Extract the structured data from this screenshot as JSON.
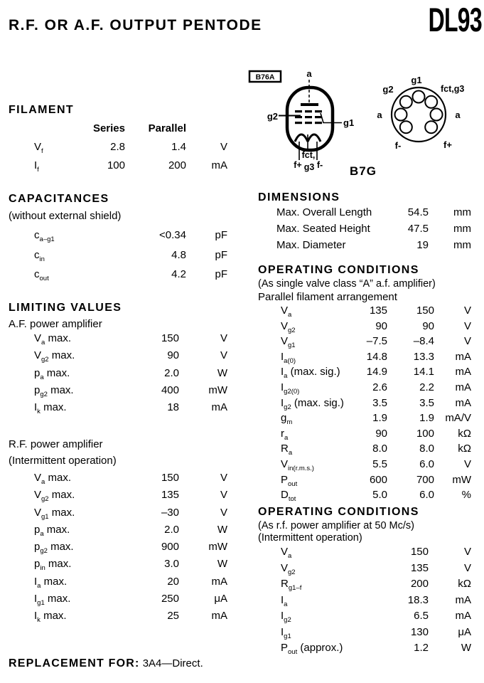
{
  "page": {
    "title": "R.F. OR A.F. OUTPUT PENTODE",
    "model": "DL93"
  },
  "filament": {
    "heading": "FILAMENT",
    "col_headers": [
      "Series",
      "Parallel"
    ],
    "rows": [
      {
        "label": "V_{f}",
        "series": "2.8",
        "parallel": "1.4",
        "unit": "V"
      },
      {
        "label": "I_{f}",
        "series": "100",
        "parallel": "200",
        "unit": "mA"
      }
    ]
  },
  "capacitances": {
    "heading": "CAPACITANCES",
    "subtitle": "(without external shield)",
    "rows": [
      {
        "label": "c_{a–g1}",
        "value": "<0.34",
        "unit": "pF"
      },
      {
        "label": "c_{in}",
        "value": "4.8",
        "unit": "pF"
      },
      {
        "label": "c_{out}",
        "value": "4.2",
        "unit": "pF"
      }
    ]
  },
  "limiting_values": {
    "heading": "LIMITING VALUES",
    "af": {
      "subtitle": "A.F. power amplifier",
      "rows": [
        {
          "label": "V_{a} max.",
          "value": "150",
          "unit": "V"
        },
        {
          "label": "V_{g2} max.",
          "value": "90",
          "unit": "V"
        },
        {
          "label": "p_{a} max.",
          "value": "2.0",
          "unit": "W"
        },
        {
          "label": "p_{g2} max.",
          "value": "400",
          "unit": "mW"
        },
        {
          "label": "I_{k} max.",
          "value": "18",
          "unit": "mA"
        }
      ]
    },
    "rf": {
      "subtitle": "R.F. power amplifier",
      "subtitle2": "(Intermittent operation)",
      "rows": [
        {
          "label": "V_{a} max.",
          "value": "150",
          "unit": "V"
        },
        {
          "label": "V_{g2} max.",
          "value": "135",
          "unit": "V"
        },
        {
          "label": "V_{g1} max.",
          "value": "–30",
          "unit": "V"
        },
        {
          "label": "p_{a} max.",
          "value": "2.0",
          "unit": "W"
        },
        {
          "label": "p_{g2} max.",
          "value": "900",
          "unit": "mW"
        },
        {
          "label": "p_{in} max.",
          "value": "3.0",
          "unit": "W"
        },
        {
          "label": "I_{a} max.",
          "value": "20",
          "unit": "mA"
        },
        {
          "label": "I_{g1} max.",
          "value": "250",
          "unit": "μA"
        },
        {
          "label": "I_{k} max.",
          "value": "25",
          "unit": "mA"
        }
      ]
    }
  },
  "dimensions": {
    "heading": "DIMENSIONS",
    "rows": [
      {
        "label": "Max. Overall Length",
        "value": "54.5",
        "unit": "mm"
      },
      {
        "label": "Max. Seated Height",
        "value": "47.5",
        "unit": "mm"
      },
      {
        "label": "Max. Diameter",
        "value": "19",
        "unit": "mm"
      }
    ]
  },
  "operating_conditions_af": {
    "heading": "OPERATING CONDITIONS",
    "subtitle": "(As single valve class “A” a.f. amplifier)",
    "note": "Parallel filament arrangement",
    "rows": [
      {
        "label": "V_{a}",
        "v1": "135",
        "v2": "150",
        "unit": "V"
      },
      {
        "label": "V_{g2}",
        "v1": "90",
        "v2": "90",
        "unit": "V"
      },
      {
        "label": "V_{g1}",
        "v1": "–7.5",
        "v2": "–8.4",
        "unit": "V"
      },
      {
        "label": "I_{a(0)}",
        "v1": "14.8",
        "v2": "13.3",
        "unit": "mA"
      },
      {
        "label": "I_{a} (max. sig.)",
        "v1": "14.9",
        "v2": "14.1",
        "unit": "mA"
      },
      {
        "label": "I_{g2(0)}",
        "v1": "2.6",
        "v2": "2.2",
        "unit": "mA"
      },
      {
        "label": "I_{g2} (max. sig.)",
        "v1": "3.5",
        "v2": "3.5",
        "unit": "mA"
      },
      {
        "label": "g_{m}",
        "v1": "1.9",
        "v2": "1.9",
        "unit": "mA/V"
      },
      {
        "label": "r_{a}",
        "v1": "90",
        "v2": "100",
        "unit": "kΩ"
      },
      {
        "label": "R_{a}",
        "v1": "8.0",
        "v2": "8.0",
        "unit": "kΩ"
      },
      {
        "label": "V_{in(r.m.s.)}",
        "v1": "5.5",
        "v2": "6.0",
        "unit": "V"
      },
      {
        "label": "P_{out}",
        "v1": "600",
        "v2": "700",
        "unit": "mW"
      },
      {
        "label": "D_{tot}",
        "v1": "5.0",
        "v2": "6.0",
        "unit": "%"
      }
    ]
  },
  "operating_conditions_rf": {
    "heading": "OPERATING CONDITIONS",
    "subtitle": "(As r.f. power amplifier at 50 Mc/s)",
    "subtitle2": "(Intermittent operation)",
    "rows": [
      {
        "label": "V_{a}",
        "value": "150",
        "unit": "V"
      },
      {
        "label": "V_{g2}",
        "value": "135",
        "unit": "V"
      },
      {
        "label": "R_{g1–f}",
        "value": "200",
        "unit": "kΩ"
      },
      {
        "label": "I_{a}",
        "value": "18.3",
        "unit": "mA"
      },
      {
        "label": "I_{g2}",
        "value": "6.5",
        "unit": "mA"
      },
      {
        "label": "I_{g1}",
        "value": "130",
        "unit": "μA"
      },
      {
        "label": "P_{out} (approx.)",
        "value": "1.2",
        "unit": "W"
      }
    ]
  },
  "replacement": {
    "label": "REPLACEMENT FOR:",
    "value": "3A4—Direct."
  },
  "diagrams": {
    "outline_box_label": "B76A",
    "base_label": "B7G",
    "tube": {
      "anode": "a",
      "g2": "g2",
      "g1": "g1",
      "fct": "fct,",
      "fplus": "f+",
      "g3": "g3",
      "fminus": "f-"
    },
    "base": {
      "g1": "g1",
      "g2": "g2",
      "fct_g3": "fct,g3",
      "a_left": "a",
      "a_right": "a",
      "fminus": "f-",
      "fplus": "f+"
    }
  }
}
